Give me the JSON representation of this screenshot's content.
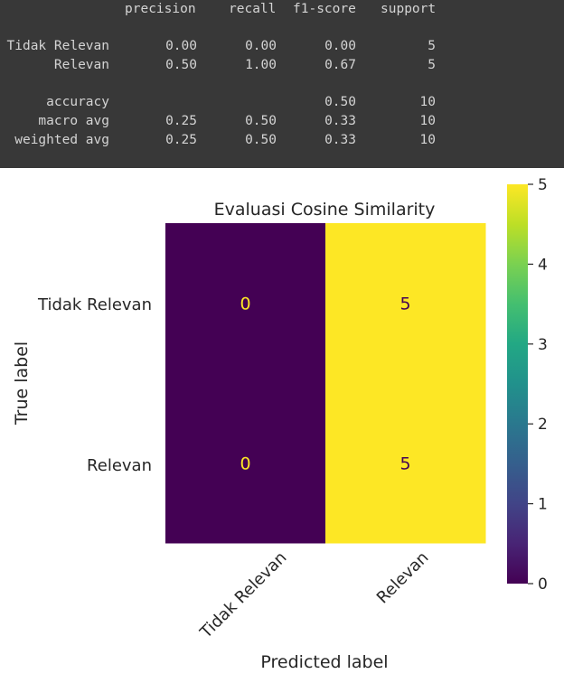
{
  "report": {
    "headers": [
      "precision",
      "recall",
      "f1-score",
      "support"
    ],
    "rows": [
      {
        "label": "Tidak Relevan",
        "precision": "0.00",
        "recall": "0.00",
        "f1": "0.00",
        "support": "5"
      },
      {
        "label": "Relevan",
        "precision": "0.50",
        "recall": "1.00",
        "f1": "0.67",
        "support": "5"
      },
      {
        "label": "accuracy",
        "precision": "",
        "recall": "",
        "f1": "0.50",
        "support": "10"
      },
      {
        "label": "macro avg",
        "precision": "0.25",
        "recall": "0.50",
        "f1": "0.33",
        "support": "10"
      },
      {
        "label": "weighted avg",
        "precision": "0.25",
        "recall": "0.50",
        "f1": "0.33",
        "support": "10"
      }
    ]
  },
  "chart_data": {
    "type": "heatmap",
    "title": "Evaluasi Cosine Similarity",
    "xlabel": "Predicted label",
    "ylabel": "True label",
    "x_categories": [
      "Tidak Relevan",
      "Relevan"
    ],
    "y_categories": [
      "Tidak Relevan",
      "Relevan"
    ],
    "values": [
      [
        0,
        5
      ],
      [
        0,
        5
      ]
    ],
    "colormap": "viridis",
    "colorbar": {
      "min": 0,
      "max": 5,
      "ticks": [
        "0",
        "1",
        "2",
        "3",
        "4",
        "5"
      ]
    },
    "colors": {
      "low": "#440154",
      "high": "#fde725",
      "text_on_low": "#fde725",
      "text_on_high": "#440154"
    }
  }
}
